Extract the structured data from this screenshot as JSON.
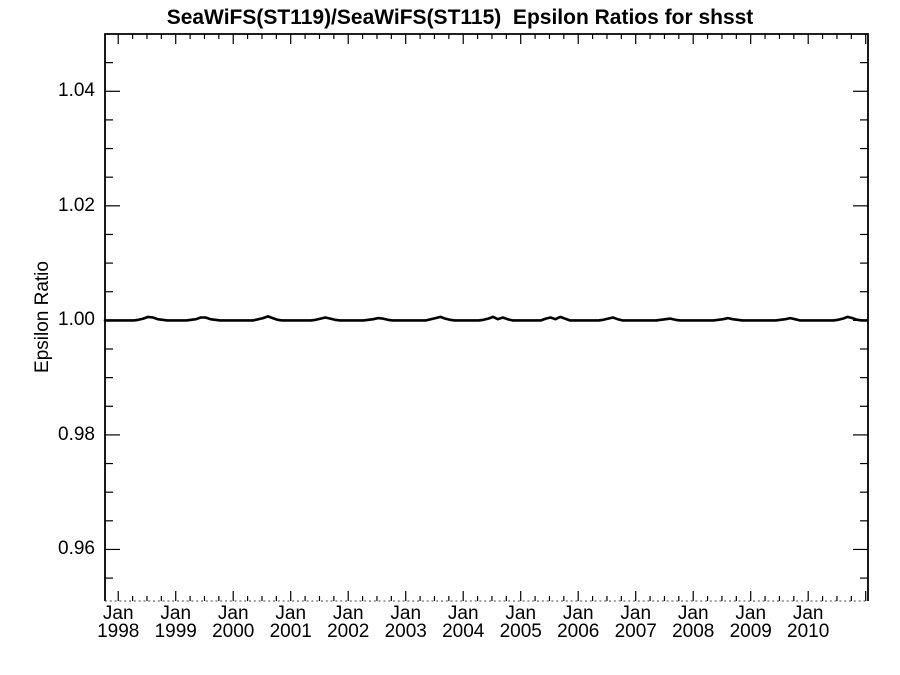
{
  "title": "SeaWiFS(ST119)/SeaWiFS(ST115)  Epsilon Ratios for shsst",
  "colors": {
    "foreground": "#000000",
    "background": "#ffffff",
    "bottom_axis": "#444444"
  },
  "axes": {
    "x": {
      "domain": [
        1997.77,
        2011.04
      ],
      "minor_interval_years": 0.25,
      "major_ticks": [
        {
          "year": 1998,
          "line1": "Jan",
          "line2": "1998"
        },
        {
          "year": 1999,
          "line1": "Jan",
          "line2": "1999"
        },
        {
          "year": 2000,
          "line1": "Jan",
          "line2": "2000"
        },
        {
          "year": 2001,
          "line1": "Jan",
          "line2": "2001"
        },
        {
          "year": 2002,
          "line1": "Jan",
          "line2": "2002"
        },
        {
          "year": 2003,
          "line1": "Jan",
          "line2": "2003"
        },
        {
          "year": 2004,
          "line1": "Jan",
          "line2": "2004"
        },
        {
          "year": 2005,
          "line1": "Jan",
          "line2": "2005"
        },
        {
          "year": 2006,
          "line1": "Jan",
          "line2": "2006"
        },
        {
          "year": 2007,
          "line1": "Jan",
          "line2": "2007"
        },
        {
          "year": 2008,
          "line1": "Jan",
          "line2": "2008"
        },
        {
          "year": 2009,
          "line1": "Jan",
          "line2": "2009"
        },
        {
          "year": 2010,
          "line1": "Jan",
          "line2": "2010"
        },
        {
          "year": 2011,
          "line1": "",
          "line2": ""
        }
      ]
    },
    "y": {
      "label": "Epsilon Ratio",
      "domain": [
        0.951,
        1.05
      ],
      "minor_interval": 0.005,
      "major_ticks": [
        {
          "value": 1.04,
          "label": "1.04"
        },
        {
          "value": 1.02,
          "label": "1.02"
        },
        {
          "value": 1.0,
          "label": "1.00"
        },
        {
          "value": 0.98,
          "label": "0.98"
        },
        {
          "value": 0.96,
          "label": "0.96"
        }
      ]
    }
  },
  "chart_data": {
    "type": "line",
    "title": "SeaWiFS(ST119)/SeaWiFS(ST115)  Epsilon Ratios for shsst",
    "xlabel": "",
    "ylabel": "Epsilon Ratio",
    "xlim": [
      1997.77,
      2011.04
    ],
    "ylim": [
      0.951,
      1.05
    ],
    "grid": false,
    "legend": "none",
    "x_unit": "decimal_year",
    "t_start": 1997.77,
    "t_step": 0.0833333,
    "description": "Near-constant epsilon ratio at 1.000 with tiny (~+0.0005) seasonal bumps each mid-year",
    "values": [
      1.0,
      1.0,
      1.0,
      1.0,
      1.0,
      1.0,
      1.0,
      1.0001,
      1.0003,
      1.0006,
      1.0005,
      1.0002,
      1.0001,
      1.0,
      1.0,
      1.0,
      1.0,
      1.0,
      1.0001,
      1.0002,
      1.0005,
      1.0005,
      1.0002,
      1.0001,
      1.0,
      1.0,
      1.0,
      1.0,
      1.0,
      1.0,
      1.0,
      1.0,
      1.0002,
      1.0004,
      1.0007,
      1.0004,
      1.0001,
      1.0,
      1.0,
      1.0,
      1.0,
      1.0,
      1.0,
      1.0,
      1.0001,
      1.0003,
      1.0005,
      1.0003,
      1.0001,
      1.0,
      1.0,
      1.0,
      1.0,
      1.0,
      1.0,
      1.0001,
      1.0002,
      1.0004,
      1.0003,
      1.0001,
      1.0,
      1.0,
      1.0,
      1.0,
      1.0,
      1.0,
      1.0,
      1.0,
      1.0002,
      1.0004,
      1.0006,
      1.0003,
      1.0001,
      1.0,
      1.0,
      1.0,
      1.0,
      1.0,
      1.0,
      1.0001,
      1.0003,
      1.0006,
      1.0002,
      1.0005,
      1.0002,
      1.0,
      1.0,
      1.0,
      1.0,
      1.0,
      1.0,
      1.0,
      1.0003,
      1.0005,
      1.0002,
      1.0006,
      1.0003,
      1.0,
      1.0,
      1.0,
      1.0,
      1.0,
      1.0,
      1.0,
      1.0001,
      1.0003,
      1.0005,
      1.0002,
      1.0,
      1.0,
      1.0,
      1.0,
      1.0,
      1.0,
      1.0,
      1.0,
      1.0001,
      1.0002,
      1.0003,
      1.0001,
      1.0,
      1.0,
      1.0,
      1.0,
      1.0,
      1.0,
      1.0,
      1.0,
      1.0001,
      1.0002,
      1.0004,
      1.0002,
      1.0001,
      1.0,
      1.0,
      1.0,
      1.0,
      1.0,
      1.0,
      1.0,
      1.0,
      1.0001,
      1.0002,
      1.0004,
      1.0002,
      1.0,
      1.0,
      1.0,
      1.0,
      1.0,
      1.0,
      1.0,
      1.0,
      1.0001,
      1.0003,
      1.0006,
      1.0004,
      1.0001,
      1.0,
      1.0
    ]
  }
}
